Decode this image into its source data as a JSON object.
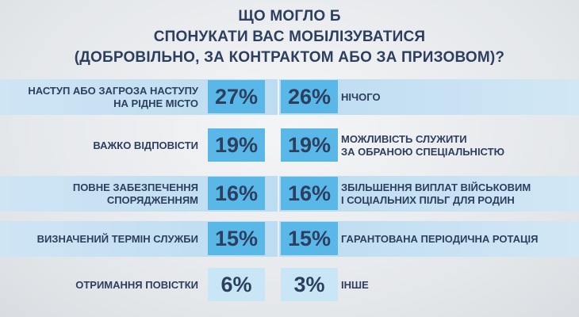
{
  "header": {
    "title_line1": "ЩО МОГЛО Б",
    "title_line2": "СПОНУКАТИ ВАС МОБІЛІЗУВАТИСЯ",
    "title_line3": "(ДОБРОВІЛЬНО, ЗА КОНТРАКТОМ АБО ЗА ПРИЗОВОМ)?"
  },
  "colors": {
    "accent": "#5ab8e8",
    "accent_pale": "#c9e6f6",
    "band": "#c6e0f2",
    "text": "#2d3f5f"
  },
  "chart_data": {
    "type": "bar",
    "title": "ЩО МОГЛО Б СПОНУКАТИ ВАС МОБІЛІЗУВАТИСЯ (ДОБРОВІЛЬНО, ЗА КОНТРАКТОМ АБО ЗА ПРИЗОВОМ)?",
    "unit": "%",
    "left_column": [
      {
        "label_lines": [
          "НАСТУП АБО ЗАГРОЗА НАСТУПУ",
          "НА РІДНЕ МІСТО"
        ],
        "value": 27,
        "value_text": "27%"
      },
      {
        "label_lines": [
          "ВАЖКО ВІДПОВІСТИ"
        ],
        "value": 19,
        "value_text": "19%"
      },
      {
        "label_lines": [
          "ПОВНЕ ЗАБЕЗПЕЧЕННЯ",
          "СПОРЯДЖЕННЯМ"
        ],
        "value": 16,
        "value_text": "16%"
      },
      {
        "label_lines": [
          "ВИЗНАЧЕНИЙ ТЕРМІН СЛУЖБИ"
        ],
        "value": 15,
        "value_text": "15%"
      },
      {
        "label_lines": [
          "ОТРИМАННЯ ПОВІСТКИ"
        ],
        "value": 6,
        "value_text": "6%"
      }
    ],
    "right_column": [
      {
        "label_lines": [
          "НІЧОГО"
        ],
        "value": 26,
        "value_text": "26%"
      },
      {
        "label_lines": [
          "МОЖЛИВІСТЬ СЛУЖИТИ",
          "ЗА ОБРАНОЮ СПЕЦІАЛЬНІСТЮ"
        ],
        "value": 19,
        "value_text": "19%"
      },
      {
        "label_lines": [
          "ЗБІЛЬШЕННЯ ВИПЛАТ ВІЙСЬКОВИМ",
          "І СОЦІАЛЬНИХ ПІЛЬГ ДЛЯ РОДИН"
        ],
        "value": 16,
        "value_text": "16%"
      },
      {
        "label_lines": [
          "ГАРАНТОВАНА ПЕРІОДИЧНА РОТАЦІЯ"
        ],
        "value": 15,
        "value_text": "15%"
      },
      {
        "label_lines": [
          "ІНШЕ"
        ],
        "value": 3,
        "value_text": "3%"
      }
    ]
  }
}
